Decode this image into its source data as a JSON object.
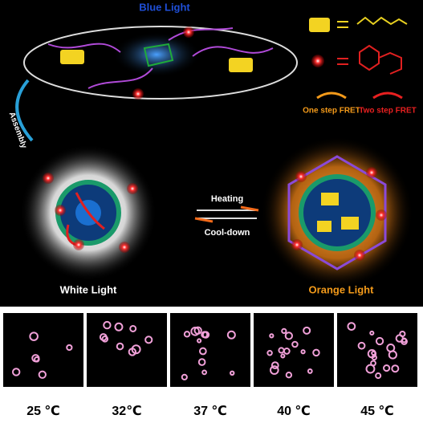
{
  "top": {
    "title": "Blue Light",
    "one_step": "One step FRET",
    "two_step": "Two step FRET",
    "assembly": "Assembly"
  },
  "transition": {
    "heating": "Heating",
    "cooldown": "Cool-down"
  },
  "states": {
    "white": "White Light",
    "orange": "Orange Light"
  },
  "panels": [
    {
      "label": "25 ℃"
    },
    {
      "label": "32℃"
    },
    {
      "label": "37 ℃"
    },
    {
      "label": "40 ℃"
    },
    {
      "label": "45 ℃"
    }
  ]
}
